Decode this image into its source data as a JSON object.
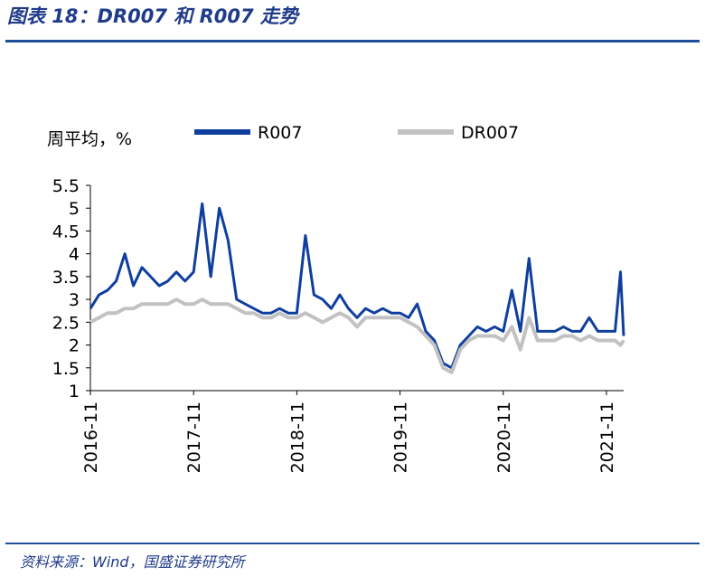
{
  "header": {
    "title": "图表 18：DR007 和 R007 走势"
  },
  "footer": {
    "source": "资料来源：Wind，国盛证券研究所"
  },
  "colors": {
    "r007": "#0f3f9e",
    "dr007": "#c2c2c2",
    "axis": "#000000",
    "accent": "#1f4e9b"
  },
  "chart_data": {
    "type": "line",
    "ylabel": "周平均，%",
    "ylim": [
      1,
      5.5
    ],
    "yticks": [
      "5.5",
      "5",
      "4.5",
      "4",
      "3.5",
      "3",
      "2.5",
      "2",
      "1.5",
      "1"
    ],
    "xticks": [
      "2016-11",
      "2017-11",
      "2018-11",
      "2019-11",
      "2020-11",
      "2021-11"
    ],
    "x_start": "2016-11",
    "x_end": "2022-01",
    "grid": false,
    "legend": "top",
    "series": [
      {
        "name": "R007",
        "values": [
          [
            "2016-11",
            2.8
          ],
          [
            "2016-12",
            3.1
          ],
          [
            "2017-01",
            3.2
          ],
          [
            "2017-02",
            3.4
          ],
          [
            "2017-03",
            4.0
          ],
          [
            "2017-04",
            3.3
          ],
          [
            "2017-05",
            3.7
          ],
          [
            "2017-06",
            3.5
          ],
          [
            "2017-07",
            3.3
          ],
          [
            "2017-08",
            3.4
          ],
          [
            "2017-09",
            3.6
          ],
          [
            "2017-10",
            3.4
          ],
          [
            "2017-11",
            3.6
          ],
          [
            "2017-12",
            5.1
          ],
          [
            "2018-01",
            3.5
          ],
          [
            "2018-02",
            5.0
          ],
          [
            "2018-03",
            4.3
          ],
          [
            "2018-04",
            3.0
          ],
          [
            "2018-05",
            2.9
          ],
          [
            "2018-06",
            2.8
          ],
          [
            "2018-07",
            2.7
          ],
          [
            "2018-08",
            2.7
          ],
          [
            "2018-09",
            2.8
          ],
          [
            "2018-10",
            2.7
          ],
          [
            "2018-11",
            2.7
          ],
          [
            "2018-12",
            4.4
          ],
          [
            "2019-01",
            3.1
          ],
          [
            "2019-02",
            3.0
          ],
          [
            "2019-03",
            2.8
          ],
          [
            "2019-04",
            3.1
          ],
          [
            "2019-05",
            2.8
          ],
          [
            "2019-06",
            2.6
          ],
          [
            "2019-07",
            2.8
          ],
          [
            "2019-08",
            2.7
          ],
          [
            "2019-09",
            2.8
          ],
          [
            "2019-10",
            2.7
          ],
          [
            "2019-11",
            2.7
          ],
          [
            "2019-12",
            2.6
          ],
          [
            "2020-01",
            2.9
          ],
          [
            "2020-02",
            2.3
          ],
          [
            "2020-03",
            2.1
          ],
          [
            "2020-04",
            1.6
          ],
          [
            "2020-05",
            1.5
          ],
          [
            "2020-06",
            2.0
          ],
          [
            "2020-07",
            2.2
          ],
          [
            "2020-08",
            2.4
          ],
          [
            "2020-09",
            2.3
          ],
          [
            "2020-10",
            2.4
          ],
          [
            "2020-11",
            2.3
          ],
          [
            "2020-12",
            3.2
          ],
          [
            "2021-01",
            2.3
          ],
          [
            "2021-02",
            3.9
          ],
          [
            "2021-03",
            2.3
          ],
          [
            "2021-04",
            2.3
          ],
          [
            "2021-05",
            2.3
          ],
          [
            "2021-06",
            2.4
          ],
          [
            "2021-07",
            2.3
          ],
          [
            "2021-08",
            2.3
          ],
          [
            "2021-09",
            2.6
          ],
          [
            "2021-10",
            2.3
          ],
          [
            "2021-11",
            2.3
          ],
          [
            "2021-12",
            2.3
          ],
          [
            "2021-12-20",
            3.6
          ],
          [
            "2022-01",
            2.2
          ]
        ]
      },
      {
        "name": "DR007",
        "values": [
          [
            "2016-11",
            2.5
          ],
          [
            "2016-12",
            2.6
          ],
          [
            "2017-01",
            2.7
          ],
          [
            "2017-02",
            2.7
          ],
          [
            "2017-03",
            2.8
          ],
          [
            "2017-04",
            2.8
          ],
          [
            "2017-05",
            2.9
          ],
          [
            "2017-06",
            2.9
          ],
          [
            "2017-07",
            2.9
          ],
          [
            "2017-08",
            2.9
          ],
          [
            "2017-09",
            3.0
          ],
          [
            "2017-10",
            2.9
          ],
          [
            "2017-11",
            2.9
          ],
          [
            "2017-12",
            3.0
          ],
          [
            "2018-01",
            2.9
          ],
          [
            "2018-02",
            2.9
          ],
          [
            "2018-03",
            2.9
          ],
          [
            "2018-04",
            2.8
          ],
          [
            "2018-05",
            2.7
          ],
          [
            "2018-06",
            2.7
          ],
          [
            "2018-07",
            2.6
          ],
          [
            "2018-08",
            2.6
          ],
          [
            "2018-09",
            2.7
          ],
          [
            "2018-10",
            2.6
          ],
          [
            "2018-11",
            2.6
          ],
          [
            "2018-12",
            2.7
          ],
          [
            "2019-01",
            2.6
          ],
          [
            "2019-02",
            2.5
          ],
          [
            "2019-03",
            2.6
          ],
          [
            "2019-04",
            2.7
          ],
          [
            "2019-05",
            2.6
          ],
          [
            "2019-06",
            2.4
          ],
          [
            "2019-07",
            2.6
          ],
          [
            "2019-08",
            2.6
          ],
          [
            "2019-09",
            2.6
          ],
          [
            "2019-10",
            2.6
          ],
          [
            "2019-11",
            2.6
          ],
          [
            "2019-12",
            2.5
          ],
          [
            "2020-01",
            2.4
          ],
          [
            "2020-02",
            2.2
          ],
          [
            "2020-03",
            2.0
          ],
          [
            "2020-04",
            1.5
          ],
          [
            "2020-05",
            1.4
          ],
          [
            "2020-06",
            1.9
          ],
          [
            "2020-07",
            2.1
          ],
          [
            "2020-08",
            2.2
          ],
          [
            "2020-09",
            2.2
          ],
          [
            "2020-10",
            2.2
          ],
          [
            "2020-11",
            2.1
          ],
          [
            "2020-12",
            2.4
          ],
          [
            "2021-01",
            1.9
          ],
          [
            "2021-02",
            2.6
          ],
          [
            "2021-03",
            2.1
          ],
          [
            "2021-04",
            2.1
          ],
          [
            "2021-05",
            2.1
          ],
          [
            "2021-06",
            2.2
          ],
          [
            "2021-07",
            2.2
          ],
          [
            "2021-08",
            2.1
          ],
          [
            "2021-09",
            2.2
          ],
          [
            "2021-10",
            2.1
          ],
          [
            "2021-11",
            2.1
          ],
          [
            "2021-12",
            2.1
          ],
          [
            "2021-12-20",
            2.0
          ],
          [
            "2022-01",
            2.1
          ]
        ]
      }
    ]
  }
}
